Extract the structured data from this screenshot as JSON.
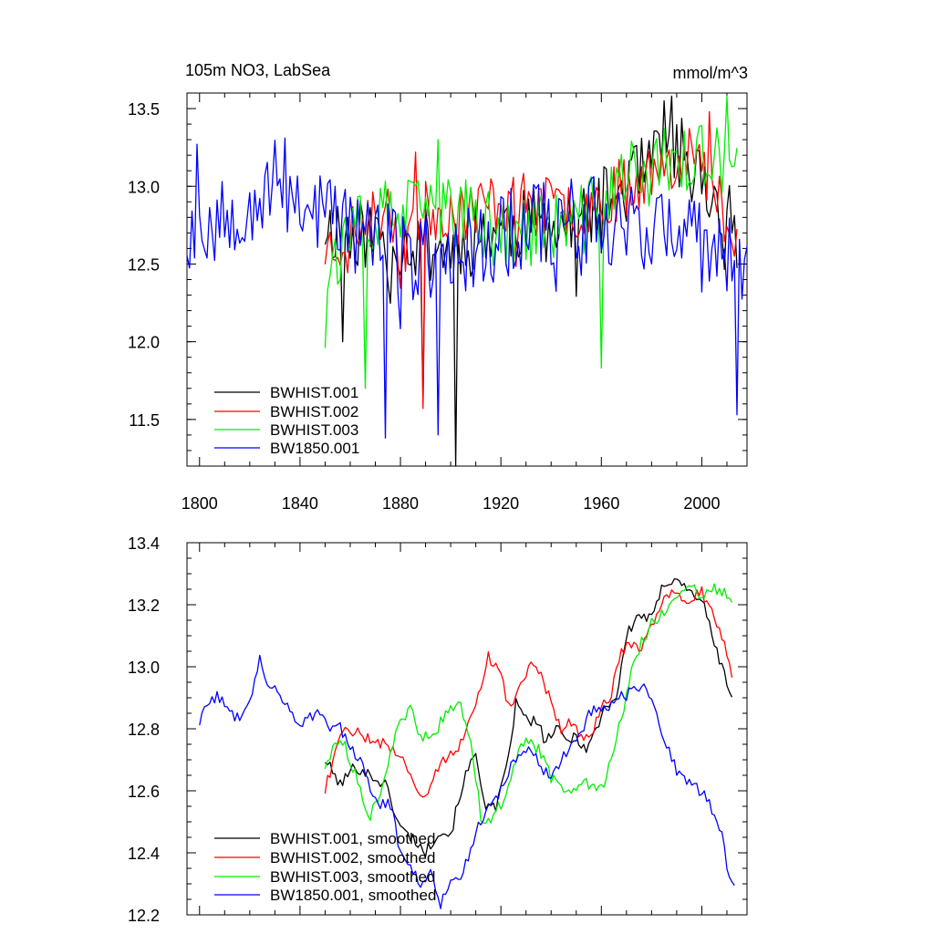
{
  "chart_data": [
    {
      "type": "line",
      "title": "105m NO3, LabSea",
      "units": "mmol/m^3",
      "xlim": [
        1795,
        2018
      ],
      "ylim": [
        11.2,
        13.6
      ],
      "x_tick_labels": [
        "1800",
        "1840",
        "1880",
        "1920",
        "1960",
        "2000"
      ],
      "x_ticks": [
        1800,
        1840,
        1880,
        1920,
        1960,
        2000
      ],
      "y_tick_labels": [
        "11.5",
        "12.0",
        "12.5",
        "13.0",
        "13.5"
      ],
      "y_ticks": [
        11.5,
        12.0,
        12.5,
        13.0,
        13.5
      ],
      "legend_location": "bottom-left",
      "series": [
        {
          "name": "BWHIST.001",
          "color": "#000000",
          "start": 1850,
          "end": 2014,
          "seed": 11,
          "segments": [
            [
              1850,
              12.75
            ],
            [
              1880,
              12.65
            ],
            [
              1900,
              12.6
            ],
            [
              1920,
              12.75
            ],
            [
              1950,
              12.75
            ],
            [
              1970,
              13.0
            ],
            [
              1990,
              13.25
            ],
            [
              2014,
              12.7
            ]
          ],
          "noise": 0.24,
          "dips": [
            [
              1889,
              11.6
            ],
            [
              1902,
              11.2
            ],
            [
              1857,
              12.0
            ]
          ],
          "peaks": [
            [
              1985,
              13.55
            ],
            [
              1988,
              13.58
            ]
          ]
        },
        {
          "name": "BWHIST.002",
          "color": "#ff0000",
          "start": 1850,
          "end": 2014,
          "seed": 23,
          "segments": [
            [
              1850,
              12.6
            ],
            [
              1870,
              12.8
            ],
            [
              1900,
              12.85
            ],
            [
              1920,
              12.9
            ],
            [
              1950,
              12.85
            ],
            [
              1970,
              13.0
            ],
            [
              1995,
              13.25
            ],
            [
              2014,
              12.7
            ]
          ],
          "noise": 0.2,
          "dips": [
            [
              1889,
              11.57
            ]
          ],
          "peaks": [
            [
              1886,
              13.22
            ],
            [
              2003,
              13.48
            ]
          ]
        },
        {
          "name": "BWHIST.003",
          "color": "#00ee00",
          "start": 1850,
          "end": 2014,
          "seed": 37,
          "segments": [
            [
              1850,
              12.5
            ],
            [
              1870,
              12.8
            ],
            [
              1900,
              12.85
            ],
            [
              1920,
              12.7
            ],
            [
              1950,
              12.75
            ],
            [
              1970,
              13.05
            ],
            [
              1995,
              13.2
            ],
            [
              2014,
              13.1
            ]
          ],
          "noise": 0.24,
          "dips": [
            [
              1850,
              11.96
            ],
            [
              1866,
              11.7
            ],
            [
              1960,
              11.83
            ]
          ],
          "peaks": [
            [
              1895,
              13.3
            ],
            [
              2010,
              13.58
            ]
          ]
        },
        {
          "name": "BW1850.001",
          "color": "#0000ff",
          "start": 1795,
          "end": 2018,
          "seed": 53,
          "segments": [
            [
              1795,
              12.7
            ],
            [
              1830,
              13.0
            ],
            [
              1860,
              12.75
            ],
            [
              1880,
              12.55
            ],
            [
              1900,
              12.55
            ],
            [
              1930,
              12.75
            ],
            [
              1960,
              12.8
            ],
            [
              1980,
              12.75
            ],
            [
              2000,
              12.6
            ],
            [
              2018,
              12.5
            ]
          ],
          "noise": 0.3,
          "dips": [
            [
              1874,
              11.38
            ],
            [
              1895,
              11.4
            ],
            [
              2014,
              11.53
            ]
          ],
          "peaks": [
            [
              1799,
              13.27
            ],
            [
              1834,
              13.31
            ]
          ]
        }
      ],
      "legend": [
        "BWHIST.001",
        "BWHIST.002",
        "BWHIST.003",
        "BW1850.001"
      ]
    },
    {
      "type": "line",
      "title": "",
      "xlim": [
        1795,
        2018
      ],
      "ylim": [
        12.2,
        13.4
      ],
      "x_ticks": [
        1800,
        1840,
        1880,
        1920,
        1960,
        2000
      ],
      "y_tick_labels": [
        "12.2",
        "12.4",
        "12.6",
        "12.8",
        "13.0",
        "13.2",
        "13.4"
      ],
      "y_ticks": [
        12.2,
        12.4,
        12.6,
        12.8,
        13.0,
        13.2,
        13.4
      ],
      "legend_location": "bottom-left",
      "series": [
        {
          "name": "BWHIST.001, smoothed",
          "color": "#000000",
          "start": 1850,
          "end": 2012,
          "seed": 101,
          "points": [
            [
              1850,
              12.7
            ],
            [
              1856,
              12.62
            ],
            [
              1862,
              12.68
            ],
            [
              1868,
              12.65
            ],
            [
              1874,
              12.62
            ],
            [
              1880,
              12.48
            ],
            [
              1886,
              12.44
            ],
            [
              1890,
              12.4
            ],
            [
              1895,
              12.47
            ],
            [
              1900,
              12.46
            ],
            [
              1905,
              12.63
            ],
            [
              1910,
              12.72
            ],
            [
              1914,
              12.55
            ],
            [
              1918,
              12.54
            ],
            [
              1922,
              12.66
            ],
            [
              1926,
              12.88
            ],
            [
              1930,
              12.83
            ],
            [
              1934,
              12.82
            ],
            [
              1938,
              12.76
            ],
            [
              1942,
              12.8
            ],
            [
              1946,
              12.76
            ],
            [
              1950,
              12.78
            ],
            [
              1954,
              12.73
            ],
            [
              1958,
              12.8
            ],
            [
              1962,
              12.88
            ],
            [
              1966,
              12.9
            ],
            [
              1970,
              13.1
            ],
            [
              1975,
              13.17
            ],
            [
              1980,
              13.15
            ],
            [
              1985,
              13.27
            ],
            [
              1990,
              13.29
            ],
            [
              1995,
              13.24
            ],
            [
              2000,
              13.22
            ],
            [
              2004,
              13.1
            ],
            [
              2008,
              13.0
            ],
            [
              2012,
              12.9
            ]
          ]
        },
        {
          "name": "BWHIST.002, smoothed",
          "color": "#ff0000",
          "start": 1850,
          "end": 2012,
          "seed": 107,
          "points": [
            [
              1850,
              12.6
            ],
            [
              1856,
              12.78
            ],
            [
              1862,
              12.8
            ],
            [
              1868,
              12.76
            ],
            [
              1874,
              12.75
            ],
            [
              1880,
              12.72
            ],
            [
              1886,
              12.62
            ],
            [
              1890,
              12.58
            ],
            [
              1895,
              12.68
            ],
            [
              1900,
              12.72
            ],
            [
              1905,
              12.76
            ],
            [
              1910,
              12.88
            ],
            [
              1915,
              13.04
            ],
            [
              1920,
              12.96
            ],
            [
              1924,
              12.86
            ],
            [
              1928,
              12.94
            ],
            [
              1932,
              13.0
            ],
            [
              1936,
              12.98
            ],
            [
              1940,
              12.88
            ],
            [
              1944,
              12.8
            ],
            [
              1948,
              12.82
            ],
            [
              1952,
              12.78
            ],
            [
              1956,
              12.78
            ],
            [
              1960,
              12.86
            ],
            [
              1964,
              12.92
            ],
            [
              1968,
              13.04
            ],
            [
              1972,
              13.08
            ],
            [
              1976,
              13.05
            ],
            [
              1980,
              13.14
            ],
            [
              1985,
              13.22
            ],
            [
              1990,
              13.24
            ],
            [
              1995,
              13.22
            ],
            [
              2000,
              13.24
            ],
            [
              2005,
              13.15
            ],
            [
              2010,
              13.05
            ],
            [
              2012,
              12.95
            ]
          ]
        },
        {
          "name": "BWHIST.003, smoothed",
          "color": "#00ee00",
          "start": 1850,
          "end": 2012,
          "seed": 113,
          "points": [
            [
              1850,
              12.68
            ],
            [
              1856,
              12.78
            ],
            [
              1860,
              12.7
            ],
            [
              1864,
              12.6
            ],
            [
              1868,
              12.52
            ],
            [
              1872,
              12.6
            ],
            [
              1876,
              12.72
            ],
            [
              1880,
              12.82
            ],
            [
              1884,
              12.86
            ],
            [
              1888,
              12.78
            ],
            [
              1892,
              12.76
            ],
            [
              1896,
              12.82
            ],
            [
              1900,
              12.86
            ],
            [
              1904,
              12.88
            ],
            [
              1908,
              12.76
            ],
            [
              1912,
              12.52
            ],
            [
              1916,
              12.5
            ],
            [
              1920,
              12.56
            ],
            [
              1924,
              12.64
            ],
            [
              1928,
              12.74
            ],
            [
              1932,
              12.76
            ],
            [
              1936,
              12.72
            ],
            [
              1940,
              12.64
            ],
            [
              1944,
              12.62
            ],
            [
              1948,
              12.6
            ],
            [
              1952,
              12.64
            ],
            [
              1956,
              12.62
            ],
            [
              1960,
              12.6
            ],
            [
              1964,
              12.7
            ],
            [
              1968,
              12.84
            ],
            [
              1972,
              12.98
            ],
            [
              1976,
              13.08
            ],
            [
              1980,
              13.14
            ],
            [
              1985,
              13.18
            ],
            [
              1990,
              13.22
            ],
            [
              1995,
              13.26
            ],
            [
              2000,
              13.22
            ],
            [
              2005,
              13.25
            ],
            [
              2010,
              13.24
            ],
            [
              2012,
              13.22
            ]
          ]
        },
        {
          "name": "BW1850.001, smoothed",
          "color": "#0000ff",
          "start": 1800,
          "end": 2013,
          "seed": 127,
          "points": [
            [
              1800,
              12.82
            ],
            [
              1804,
              12.9
            ],
            [
              1808,
              12.9
            ],
            [
              1812,
              12.85
            ],
            [
              1816,
              12.84
            ],
            [
              1820,
              12.9
            ],
            [
              1824,
              13.02
            ],
            [
              1828,
              12.94
            ],
            [
              1832,
              12.9
            ],
            [
              1836,
              12.86
            ],
            [
              1840,
              12.82
            ],
            [
              1844,
              12.84
            ],
            [
              1848,
              12.86
            ],
            [
              1852,
              12.8
            ],
            [
              1856,
              12.8
            ],
            [
              1860,
              12.74
            ],
            [
              1864,
              12.7
            ],
            [
              1868,
              12.6
            ],
            [
              1872,
              12.56
            ],
            [
              1876,
              12.56
            ],
            [
              1880,
              12.4
            ],
            [
              1884,
              12.36
            ],
            [
              1888,
              12.3
            ],
            [
              1892,
              12.34
            ],
            [
              1896,
              12.24
            ],
            [
              1900,
              12.32
            ],
            [
              1904,
              12.3
            ],
            [
              1908,
              12.42
            ],
            [
              1912,
              12.5
            ],
            [
              1916,
              12.56
            ],
            [
              1920,
              12.6
            ],
            [
              1924,
              12.68
            ],
            [
              1928,
              12.72
            ],
            [
              1932,
              12.74
            ],
            [
              1936,
              12.68
            ],
            [
              1940,
              12.64
            ],
            [
              1944,
              12.7
            ],
            [
              1948,
              12.75
            ],
            [
              1952,
              12.78
            ],
            [
              1956,
              12.86
            ],
            [
              1960,
              12.86
            ],
            [
              1964,
              12.88
            ],
            [
              1968,
              12.9
            ],
            [
              1972,
              12.92
            ],
            [
              1976,
              12.94
            ],
            [
              1980,
              12.88
            ],
            [
              1984,
              12.8
            ],
            [
              1988,
              12.7
            ],
            [
              1992,
              12.64
            ],
            [
              1996,
              12.62
            ],
            [
              2000,
              12.6
            ],
            [
              2004,
              12.54
            ],
            [
              2008,
              12.46
            ],
            [
              2011,
              12.32
            ],
            [
              2013,
              12.3
            ]
          ]
        }
      ],
      "legend": [
        "BWHIST.001, smoothed",
        "BWHIST.002, smoothed",
        "BWHIST.003, smoothed",
        "BW1850.001, smoothed"
      ]
    }
  ]
}
